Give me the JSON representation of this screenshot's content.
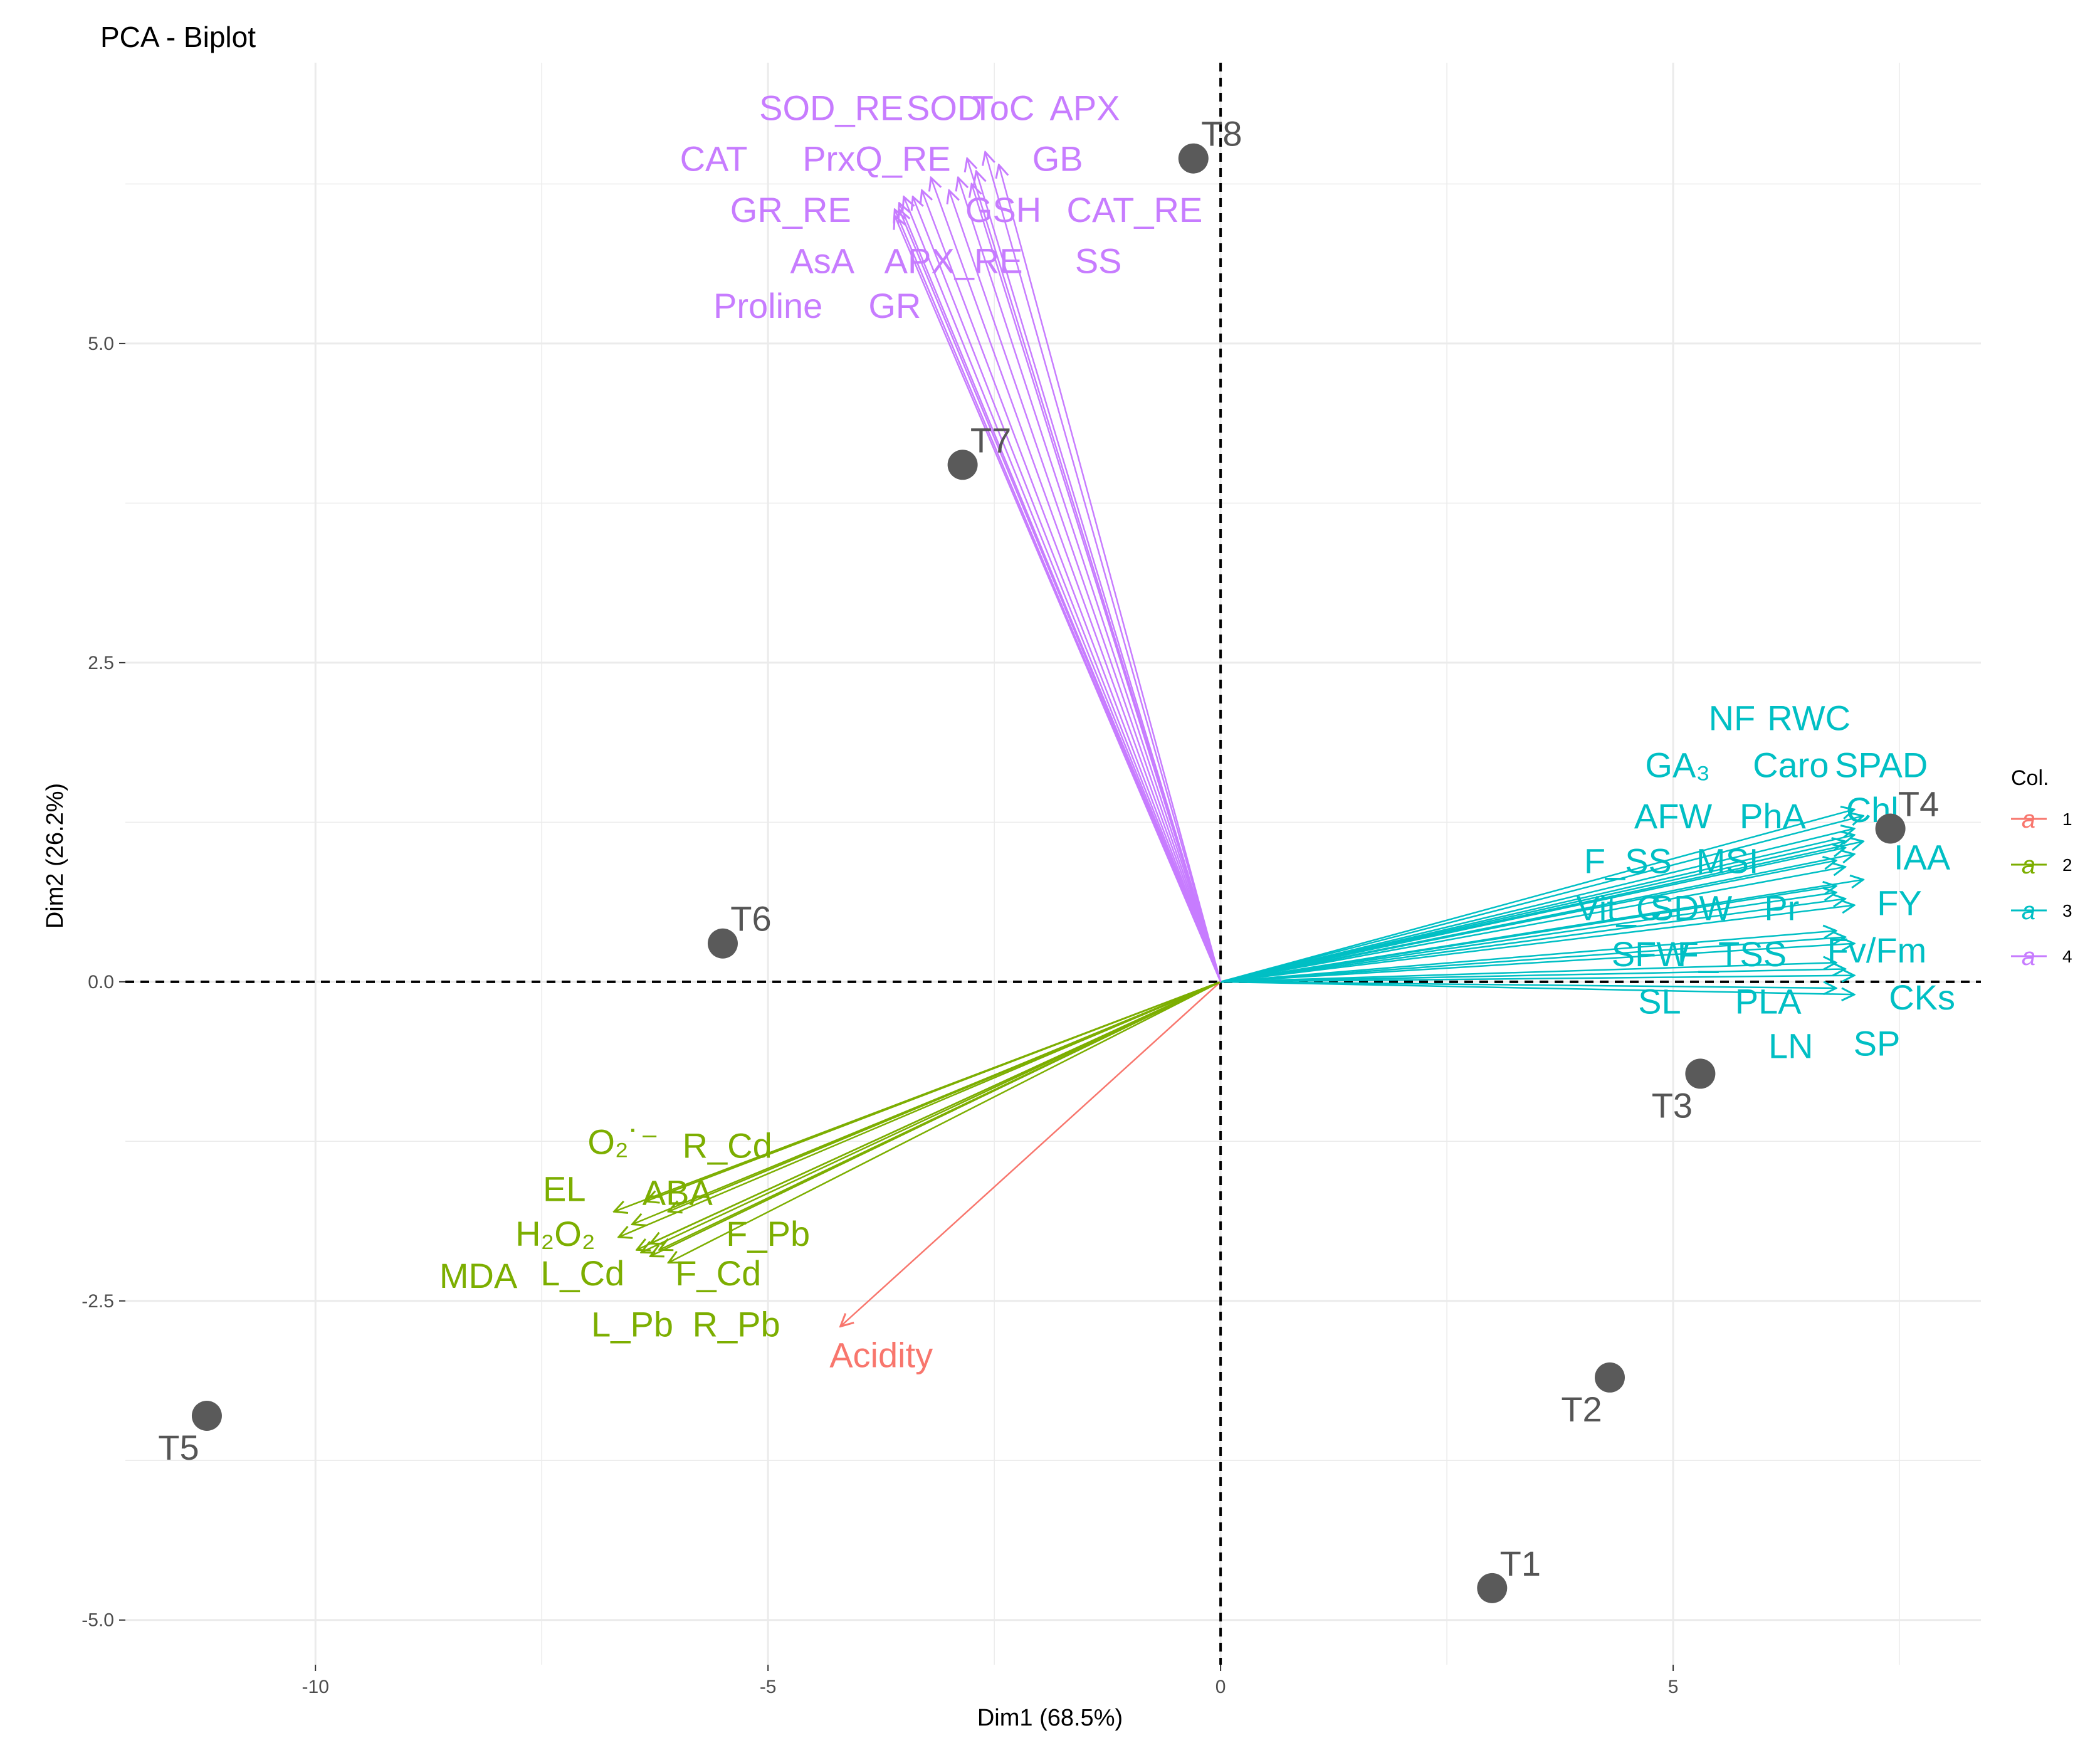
{
  "chart_data": {
    "type": "scatter",
    "subtype": "pca-biplot",
    "title": "PCA - Biplot",
    "xlabel": "Dim1 (68.5%)",
    "ylabel": "Dim2 (26.2%)",
    "xlim": [
      -12.1,
      8.4
    ],
    "ylim": [
      -5.35,
      7.2
    ],
    "xticks": [
      -10,
      -5,
      0,
      5
    ],
    "xtick_labels": [
      "-10",
      "-5",
      "0",
      "5"
    ],
    "yticks": [
      -5.0,
      -2.5,
      0.0,
      2.5,
      5.0
    ],
    "ytick_labels": [
      "-5.0",
      "-2.5",
      "0.0",
      "2.5",
      "5.0"
    ],
    "grid": true,
    "reference_lines": {
      "x": 0,
      "y": 0,
      "style": "dashed"
    },
    "colors": {
      "group_1": "#F8766D",
      "group_2": "#7CAE00",
      "group_3": "#00BFC4",
      "group_4": "#C77CFF",
      "points": "#5a5a5a",
      "point_labels": "#555555",
      "grid": "#ebebeb",
      "tick_label": "#4d4d4d"
    },
    "individuals": [
      {
        "name": "T1",
        "x": 3.0,
        "y": -4.75
      },
      {
        "name": "T2",
        "x": 4.3,
        "y": -3.1
      },
      {
        "name": "T3",
        "x": 5.3,
        "y": -0.72
      },
      {
        "name": "T4",
        "x": 7.4,
        "y": 1.2
      },
      {
        "name": "T5",
        "x": -11.2,
        "y": -3.4
      },
      {
        "name": "T6",
        "x": -5.5,
        "y": 0.3
      },
      {
        "name": "T7",
        "x": -2.85,
        "y": 4.05
      },
      {
        "name": "T8",
        "x": -0.3,
        "y": 6.45
      }
    ],
    "variables": [
      {
        "name": "Acidity",
        "group": 1,
        "x": -4.2,
        "y": -2.7,
        "lx": -3.75,
        "ly": -2.92
      },
      {
        "name": "O₂˙⁻",
        "group": 2,
        "x": -6.35,
        "y": -1.72,
        "lx": -6.6,
        "ly": -1.25
      },
      {
        "name": "R_Cd",
        "group": 2,
        "x": -6.1,
        "y": -1.8,
        "lx": -5.45,
        "ly": -1.28
      },
      {
        "name": "EL",
        "group": 2,
        "x": -6.7,
        "y": -1.8,
        "lx": -7.25,
        "ly": -1.62
      },
      {
        "name": "ABA",
        "group": 2,
        "x": -6.5,
        "y": -1.9,
        "lx": -6.0,
        "ly": -1.65
      },
      {
        "name": "H₂O₂",
        "group": 2,
        "x": -6.65,
        "y": -2.0,
        "lx": -7.35,
        "ly": -1.97
      },
      {
        "name": "F_Pb",
        "group": 2,
        "x": -6.3,
        "y": -2.05,
        "lx": -5.0,
        "ly": -1.97
      },
      {
        "name": "MDA",
        "group": 2,
        "x": -6.45,
        "y": -2.1,
        "lx": -8.2,
        "ly": -2.3
      },
      {
        "name": "L_Cd",
        "group": 2,
        "x": -6.4,
        "y": -2.12,
        "lx": -7.05,
        "ly": -2.28
      },
      {
        "name": "F_Cd",
        "group": 2,
        "x": -6.2,
        "y": -2.1,
        "lx": -5.55,
        "ly": -2.28
      },
      {
        "name": "L_Pb",
        "group": 2,
        "x": -6.3,
        "y": -2.15,
        "lx": -6.5,
        "ly": -2.68
      },
      {
        "name": "R_Pb",
        "group": 2,
        "x": -6.1,
        "y": -2.2,
        "lx": -5.35,
        "ly": -2.68
      },
      {
        "name": "NF",
        "group": 3,
        "x": 7.0,
        "y": 1.35,
        "lx": 5.65,
        "ly": 2.07
      },
      {
        "name": "RWC",
        "group": 3,
        "x": 7.1,
        "y": 1.3,
        "lx": 6.5,
        "ly": 2.07
      },
      {
        "name": "GA₃",
        "group": 3,
        "x": 7.0,
        "y": 1.2,
        "lx": 5.05,
        "ly": 1.7
      },
      {
        "name": "Caro",
        "group": 3,
        "x": 7.0,
        "y": 1.15,
        "lx": 6.3,
        "ly": 1.7
      },
      {
        "name": "SPAD",
        "group": 3,
        "x": 7.1,
        "y": 1.1,
        "lx": 7.3,
        "ly": 1.7
      },
      {
        "name": "AFW",
        "group": 3,
        "x": 6.9,
        "y": 1.1,
        "lx": 5.0,
        "ly": 1.3
      },
      {
        "name": "PhA",
        "group": 3,
        "x": 6.9,
        "y": 1.05,
        "lx": 6.1,
        "ly": 1.3
      },
      {
        "name": "Chl",
        "group": 3,
        "x": 7.0,
        "y": 1.0,
        "lx": 7.2,
        "ly": 1.35
      },
      {
        "name": "F_SS",
        "group": 3,
        "x": 6.8,
        "y": 0.95,
        "lx": 4.5,
        "ly": 0.95
      },
      {
        "name": "MSI",
        "group": 3,
        "x": 6.9,
        "y": 0.9,
        "lx": 5.6,
        "ly": 0.95
      },
      {
        "name": "IAA",
        "group": 3,
        "x": 7.1,
        "y": 0.8,
        "lx": 7.75,
        "ly": 0.98
      },
      {
        "name": "Vit_C",
        "group": 3,
        "x": 6.8,
        "y": 0.75,
        "lx": 4.4,
        "ly": 0.58
      },
      {
        "name": "SDW",
        "group": 3,
        "x": 6.8,
        "y": 0.7,
        "lx": 5.2,
        "ly": 0.58
      },
      {
        "name": "Pr",
        "group": 3,
        "x": 6.9,
        "y": 0.65,
        "lx": 6.2,
        "ly": 0.58
      },
      {
        "name": "FY",
        "group": 3,
        "x": 7.0,
        "y": 0.6,
        "lx": 7.5,
        "ly": 0.62
      },
      {
        "name": "SFW",
        "group": 3,
        "x": 6.8,
        "y": 0.4,
        "lx": 4.75,
        "ly": 0.22
      },
      {
        "name": "F_TSS",
        "group": 3,
        "x": 6.9,
        "y": 0.35,
        "lx": 5.65,
        "ly": 0.22
      },
      {
        "name": "Fv/Fm",
        "group": 3,
        "x": 7.0,
        "y": 0.3,
        "lx": 7.25,
        "ly": 0.25
      },
      {
        "name": "SL",
        "group": 3,
        "x": 6.8,
        "y": 0.15,
        "lx": 4.85,
        "ly": -0.15
      },
      {
        "name": "PLA",
        "group": 3,
        "x": 6.9,
        "y": 0.1,
        "lx": 6.05,
        "ly": -0.15
      },
      {
        "name": "CKs",
        "group": 3,
        "x": 7.0,
        "y": 0.05,
        "lx": 7.75,
        "ly": -0.12
      },
      {
        "name": "LN",
        "group": 3,
        "x": 6.8,
        "y": -0.05,
        "lx": 6.3,
        "ly": -0.5
      },
      {
        "name": "SP",
        "group": 3,
        "x": 7.0,
        "y": -0.1,
        "lx": 7.25,
        "ly": -0.48
      },
      {
        "name": "SOD_RE",
        "group": 4,
        "x": -3.5,
        "y": 6.15,
        "lx": -4.3,
        "ly": 6.85
      },
      {
        "name": "SOD",
        "group": 4,
        "x": -3.3,
        "y": 6.2,
        "lx": -3.05,
        "ly": 6.85
      },
      {
        "name": "ToC",
        "group": 4,
        "x": -2.8,
        "y": 6.45,
        "lx": -2.4,
        "ly": 6.85
      },
      {
        "name": "APX",
        "group": 4,
        "x": -2.6,
        "y": 6.5,
        "lx": -1.5,
        "ly": 6.85
      },
      {
        "name": "CAT",
        "group": 4,
        "x": -3.55,
        "y": 6.1,
        "lx": -5.6,
        "ly": 6.45
      },
      {
        "name": "PrxQ_RE",
        "group": 4,
        "x": -3.2,
        "y": 6.3,
        "lx": -3.8,
        "ly": 6.45
      },
      {
        "name": "GB",
        "group": 4,
        "x": -2.45,
        "y": 6.4,
        "lx": -1.8,
        "ly": 6.45
      },
      {
        "name": "GR_RE",
        "group": 4,
        "x": -3.6,
        "y": 6.05,
        "lx": -4.75,
        "ly": 6.05
      },
      {
        "name": "GSH",
        "group": 4,
        "x": -2.9,
        "y": 6.3,
        "lx": -2.4,
        "ly": 6.05
      },
      {
        "name": "CAT_RE",
        "group": 4,
        "x": -2.7,
        "y": 6.35,
        "lx": -0.95,
        "ly": 6.05
      },
      {
        "name": "AsA",
        "group": 4,
        "x": -3.6,
        "y": 6.0,
        "lx": -4.4,
        "ly": 5.65
      },
      {
        "name": "APX_RE",
        "group": 4,
        "x": -3.0,
        "y": 6.2,
        "lx": -2.95,
        "ly": 5.65
      },
      {
        "name": "SS",
        "group": 4,
        "x": -2.75,
        "y": 6.25,
        "lx": -1.35,
        "ly": 5.65
      },
      {
        "name": "Proline",
        "group": 4,
        "x": -3.55,
        "y": 6.05,
        "lx": -5.0,
        "ly": 5.3
      },
      {
        "name": "GR",
        "group": 4,
        "x": -3.4,
        "y": 6.15,
        "lx": -3.6,
        "ly": 5.3
      }
    ],
    "legend": {
      "title": "Col.",
      "position": "right",
      "key_symbol": "a",
      "entries": [
        {
          "label": "1",
          "color": "#F8766D"
        },
        {
          "label": "2",
          "color": "#7CAE00"
        },
        {
          "label": "3",
          "color": "#00BFC4"
        },
        {
          "label": "4",
          "color": "#C77CFF"
        }
      ]
    }
  }
}
